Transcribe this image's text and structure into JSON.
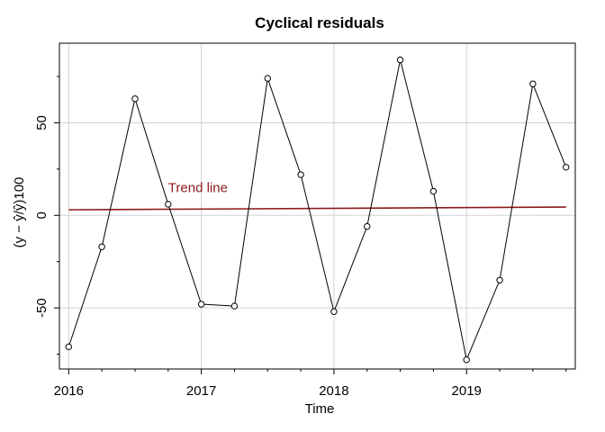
{
  "chart_data": {
    "type": "line",
    "title": "Cyclical residuals",
    "xlabel": "Time",
    "ylabel": "(y − ŷ/ŷ)100",
    "xlim": [
      2015.93,
      2019.82
    ],
    "ylim": [
      -83,
      93
    ],
    "x_ticks": [
      2016,
      2017,
      2018,
      2019
    ],
    "x_minor_ticks": [
      2016.25,
      2016.5,
      2016.75,
      2017.25,
      2017.5,
      2017.75,
      2018.25,
      2018.5,
      2018.75,
      2019.25,
      2019.5,
      2019.75
    ],
    "y_ticks": [
      -50,
      0,
      50
    ],
    "grid": true,
    "series": [
      {
        "color": "#000000",
        "marker": "open-circle",
        "x": [
          2016.0,
          2016.25,
          2016.5,
          2016.75,
          2017.0,
          2017.25,
          2017.5,
          2017.75,
          2018.0,
          2018.25,
          2018.5,
          2018.75,
          2019.0,
          2019.25,
          2019.5,
          2019.75
        ],
        "y": [
          -71,
          -17,
          63,
          6,
          -48,
          -49,
          74,
          22,
          -52,
          -6,
          84,
          13,
          -78,
          -35,
          71,
          26
        ]
      }
    ],
    "trend": {
      "color": "#8b1a1a",
      "x": [
        2016.0,
        2019.75
      ],
      "y": [
        3,
        4.5
      ]
    },
    "annotations": [
      {
        "text": "Trend line",
        "x": 2016.75,
        "y": 15,
        "color": "#8b1a1a"
      }
    ]
  }
}
